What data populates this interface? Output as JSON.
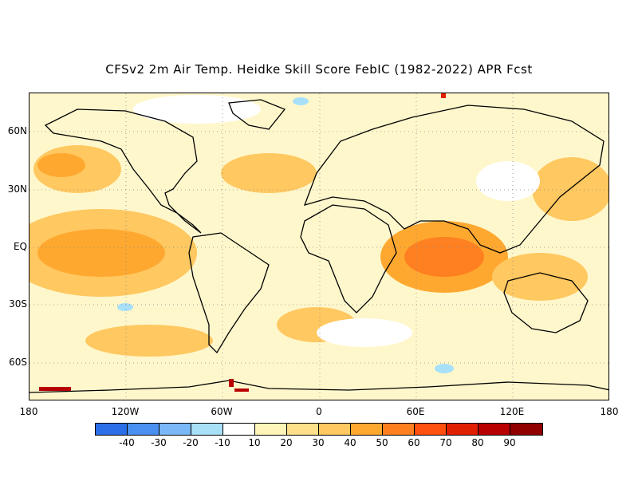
{
  "title": "CFSv2 2m Air Temp. Heidke Skill Score FebIC (1982-2022) APR Fcst",
  "map": {
    "lat_labels": [
      "60N",
      "30N",
      "EQ",
      "30S",
      "60S"
    ],
    "lon_labels": [
      "180",
      "120W",
      "60W",
      "0",
      "60E",
      "120E",
      "180"
    ]
  },
  "legend": {
    "tick_labels": [
      "-40",
      "-30",
      "-20",
      "-10",
      "10",
      "20",
      "30",
      "40",
      "50",
      "60",
      "70",
      "80",
      "90"
    ],
    "colors": [
      "#2b6ee8",
      "#4a90f0",
      "#7ab8f8",
      "#a8e0f8",
      "#ffffff",
      "#fff5b8",
      "#ffe08a",
      "#ffc860",
      "#ffa830",
      "#ff8020",
      "#ff5010",
      "#e02000",
      "#b80000",
      "#900000"
    ]
  },
  "skill_regions": [
    {
      "name": "pacific-high",
      "color": "#ff8020"
    },
    {
      "name": "indian-ocean-high",
      "color": "#ff5010"
    },
    {
      "name": "moderate",
      "color": "#ffc860"
    },
    {
      "name": "low",
      "color": "#ffe08a"
    },
    {
      "name": "negative",
      "color": "#a8e0f8"
    },
    {
      "name": "antarctic-peak",
      "color": "#b80000"
    }
  ]
}
